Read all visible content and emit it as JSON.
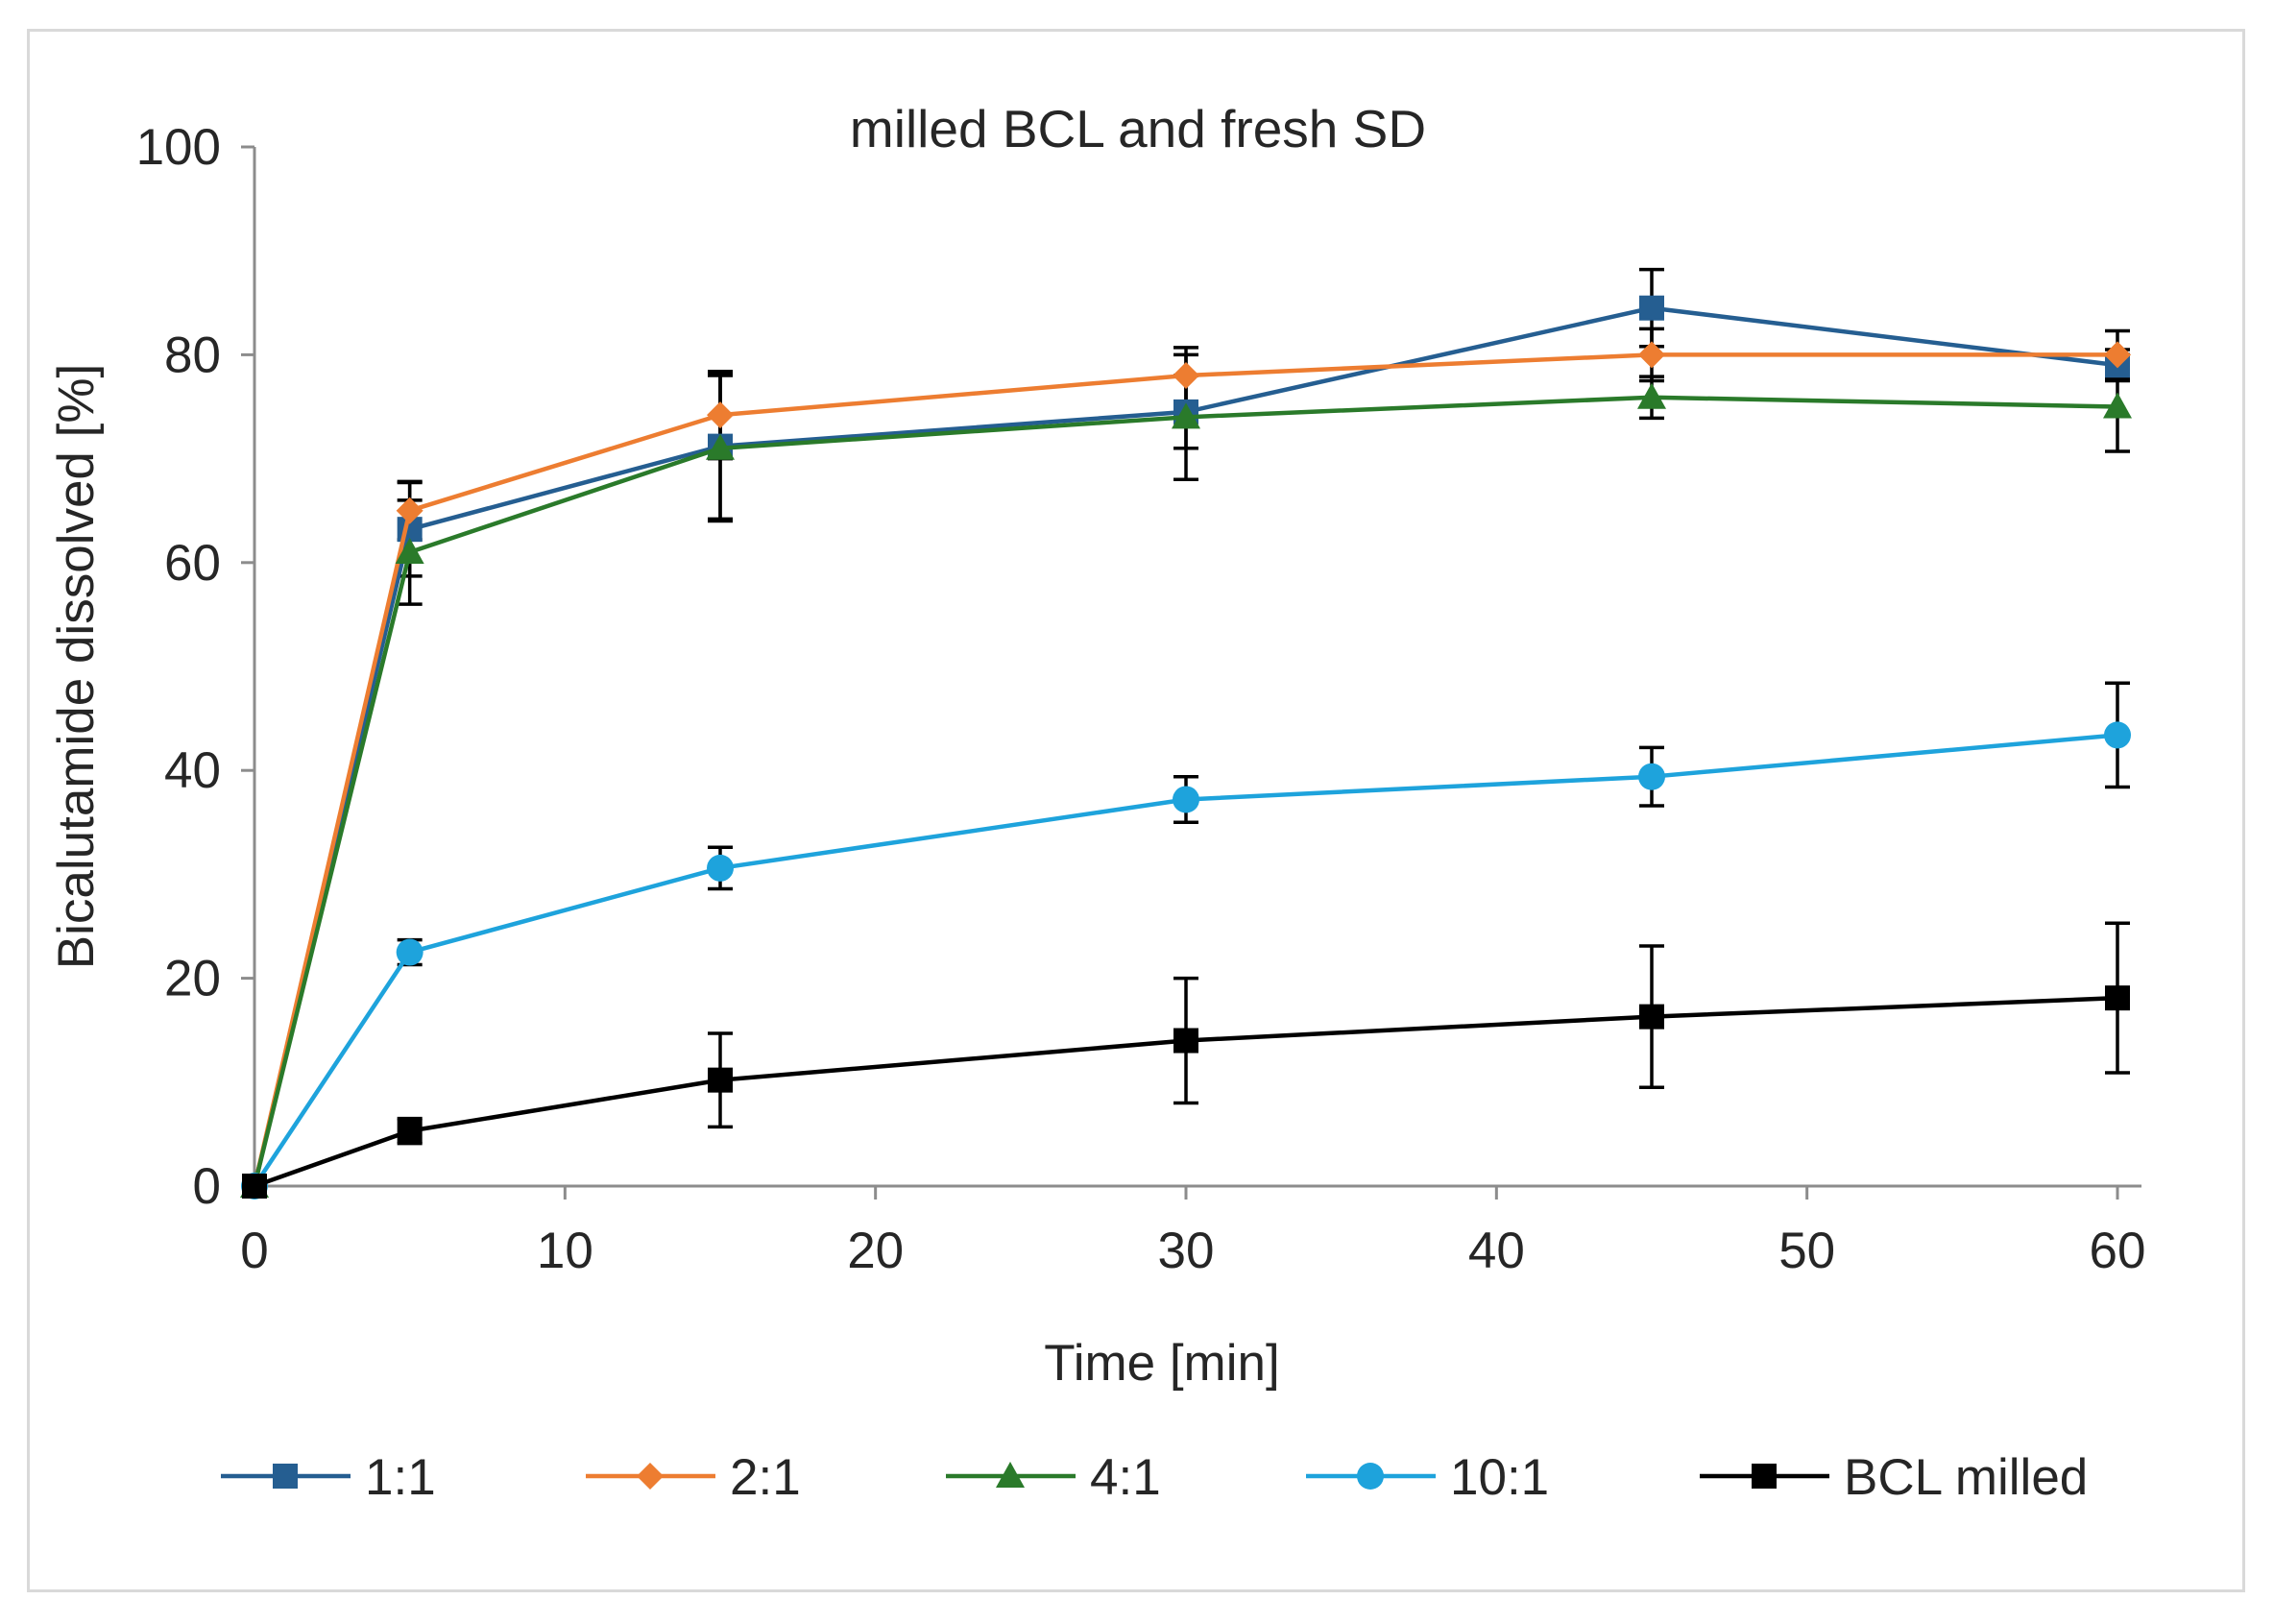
{
  "chart_data": {
    "type": "line",
    "title": "milled BCL and fresh SD",
    "xlabel": "Time [min]",
    "ylabel": "Bicalutamide dissolved [%]",
    "xlim": [
      0,
      60
    ],
    "ylim": [
      0,
      100
    ],
    "x_ticks": [
      0,
      10,
      20,
      30,
      40,
      50,
      60
    ],
    "y_ticks": [
      0,
      20,
      40,
      60,
      80,
      100
    ],
    "x_tick_labels": [
      "0",
      "10",
      "20",
      "30",
      "40",
      "50",
      "60"
    ],
    "y_tick_labels": [
      "0",
      "20",
      "40",
      "60",
      "80",
      "100"
    ],
    "grid": false,
    "legend_position": "bottom",
    "x": [
      0,
      5,
      15,
      30,
      45,
      60
    ],
    "series": [
      {
        "name": "1:1",
        "color": "#255e91",
        "marker": "square",
        "values": [
          0,
          63.2,
          71.2,
          74.5,
          84.5,
          79.0
        ],
        "errors": [
          0,
          4.5,
          7.0,
          3.5,
          3.7,
          1.5
        ]
      },
      {
        "name": "2:1",
        "color": "#ed7d31",
        "marker": "diamond",
        "values": [
          0,
          65.0,
          74.2,
          78.0,
          80.0,
          80.0
        ],
        "errors": [
          0,
          2.8,
          4.2,
          2.7,
          2.5,
          2.3
        ]
      },
      {
        "name": "4:1",
        "color": "#2a7a2a",
        "marker": "triangle",
        "values": [
          0,
          61.0,
          71.0,
          74.0,
          75.9,
          75.0
        ],
        "errors": [
          0,
          5.0,
          7.0,
          6.0,
          2.0,
          4.3
        ]
      },
      {
        "name": "10:1",
        "color": "#1ea3dc",
        "marker": "circle",
        "values": [
          0,
          22.5,
          30.6,
          37.2,
          39.4,
          43.4
        ],
        "errors": [
          0,
          1.2,
          2.0,
          2.2,
          2.8,
          5.0
        ]
      },
      {
        "name": "BCL milled",
        "color": "#000000",
        "marker": "square",
        "values": [
          0,
          5.3,
          10.2,
          14.0,
          16.3,
          18.1
        ],
        "errors": [
          0,
          1.2,
          4.5,
          6.0,
          6.8,
          7.2
        ]
      }
    ]
  }
}
